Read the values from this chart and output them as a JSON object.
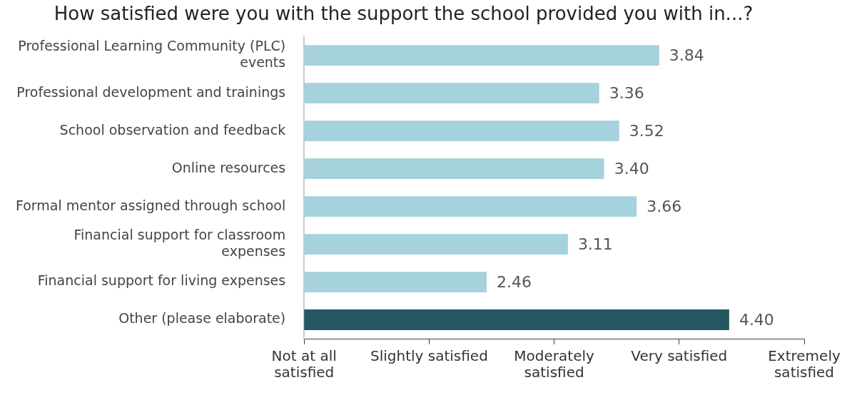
{
  "chart_data": {
    "type": "bar",
    "orientation": "horizontal",
    "title": "How satisfied were you with the support the school provided you with in...?",
    "categories": [
      "Professional Learning Community (PLC) events",
      "Professional development and trainings",
      "School observation and feedback",
      "Online resources",
      "Formal mentor assigned through school",
      "Financial support for classroom expenses",
      "Financial support for living expenses",
      "Other (please elaborate)"
    ],
    "values": [
      3.84,
      3.36,
      3.52,
      3.4,
      3.66,
      3.11,
      2.46,
      4.4
    ],
    "colors": [
      "#a5d2dc",
      "#a5d2dc",
      "#a5d2dc",
      "#a5d2dc",
      "#a5d2dc",
      "#a5d2dc",
      "#a5d2dc",
      "#245762"
    ],
    "value_labels": [
      "3.84",
      "3.36",
      "3.52",
      "3.40",
      "3.66",
      "3.11",
      "2.46",
      "4.40"
    ],
    "xlim": [
      1,
      5
    ],
    "xticks": [
      {
        "value": 1,
        "label": null
      },
      {
        "value": 2,
        "label": null
      },
      {
        "value": 3,
        "label": null
      },
      {
        "value": 4,
        "label": null
      },
      {
        "value": 5,
        "label": null
      }
    ],
    "annotations": [
      "Not at all satisfied",
      "Slightly satisfied",
      "Moderately satisfied",
      "Very satisfied",
      "Extremely satisfied"
    ],
    "grid": false,
    "legend": false
  }
}
